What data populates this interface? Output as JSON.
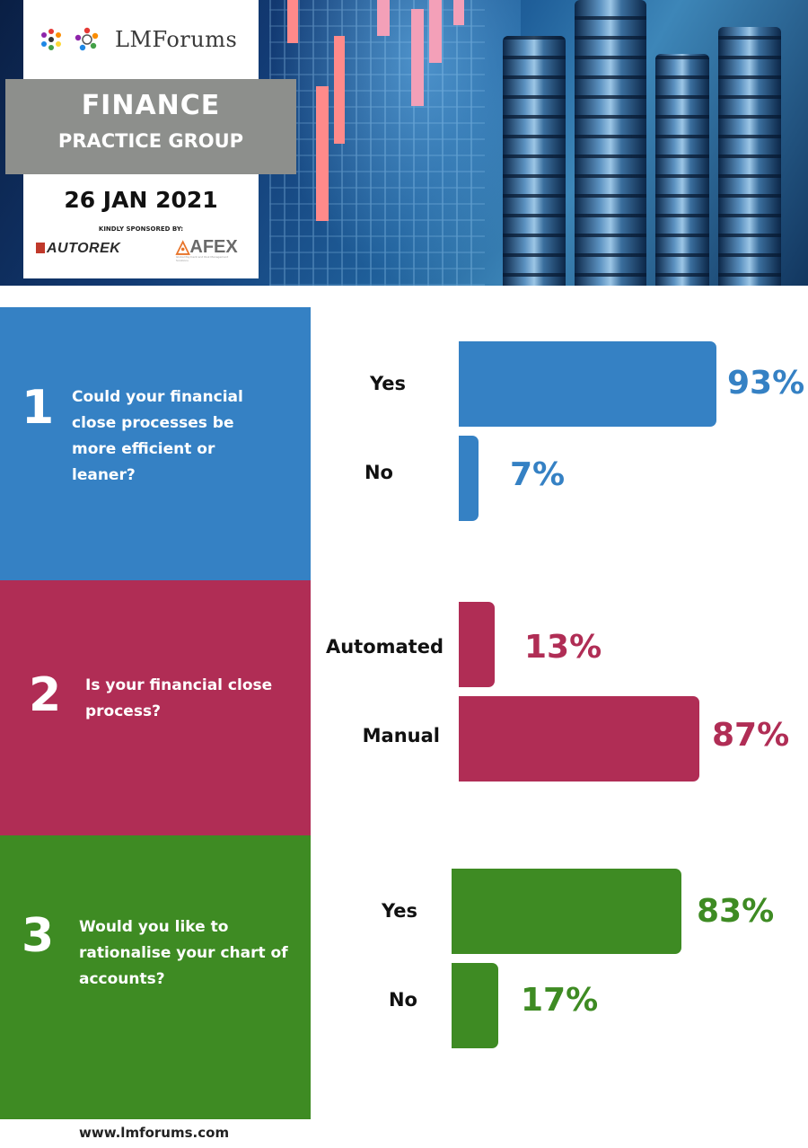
{
  "header": {
    "brand": "LMForums",
    "title": "FINANCE",
    "subtitle": "PRACTICE GROUP",
    "date": "26 JAN 2021",
    "sponsor_label": "KINDLY SPONSORED BY:",
    "sponsors": [
      "AUTOREK",
      "AFEX"
    ],
    "afex_tagline": "Global Payment and Risk Management Solutions"
  },
  "colors": {
    "q1": "#3581c4",
    "q2": "#b02d55",
    "q3": "#3e8b23"
  },
  "questions": [
    {
      "number": "1",
      "text": "Could your financial close processes be more efficient or leaner?",
      "answers": [
        {
          "label": "Yes",
          "pct": "93%",
          "value": 93
        },
        {
          "label": "No",
          "pct": "7%",
          "value": 7
        }
      ]
    },
    {
      "number": "2",
      "text": "Is your financial close process?",
      "answers": [
        {
          "label": "Automated",
          "pct": "13%",
          "value": 13
        },
        {
          "label": "Manual",
          "pct": "87%",
          "value": 87
        }
      ]
    },
    {
      "number": "3",
      "text": "Would you like to rationalise your chart of accounts?",
      "answers": [
        {
          "label": "Yes",
          "pct": "83%",
          "value": 83
        },
        {
          "label": "No",
          "pct": "17%",
          "value": 17
        }
      ]
    }
  ],
  "footer": {
    "url": "www.lmforums.com"
  }
}
